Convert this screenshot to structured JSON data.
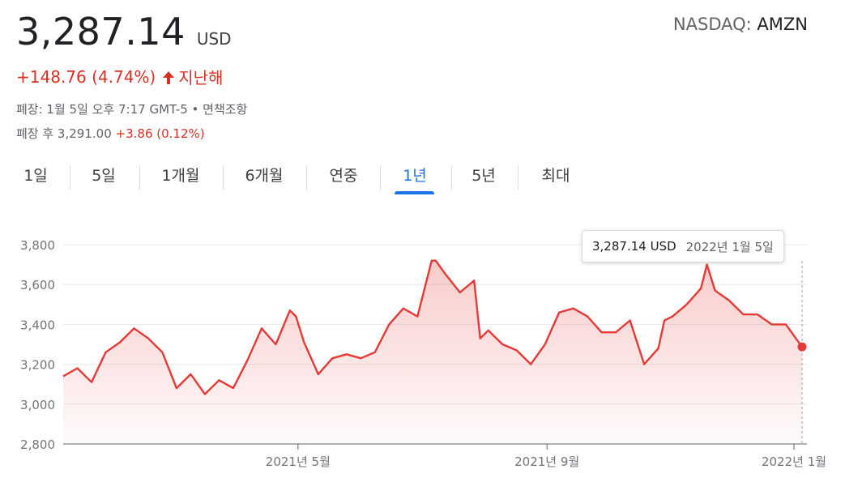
{
  "quote": {
    "price": "3,287.14",
    "currency": "USD",
    "exchange_prefix": "NASDAQ: ",
    "ticker": "AMZN",
    "change": "+148.76 (4.74%)",
    "change_period": "지난해",
    "close_label": "폐장: 1월 5일 오후 7:17 GMT-5 • 면책조항",
    "after_hours_label": "폐장 후 3,291.00",
    "after_hours_change": "+3.86 (0.12%)",
    "accent_color": "#d93025"
  },
  "tabs": [
    {
      "label": "1일"
    },
    {
      "label": "5일"
    },
    {
      "label": "1개월"
    },
    {
      "label": "6개월"
    },
    {
      "label": "연중"
    },
    {
      "label": "1년",
      "active": true
    },
    {
      "label": "5년"
    },
    {
      "label": "최대"
    }
  ],
  "tooltip": {
    "price": "3,287.14 USD",
    "date": "2022년 1월 5일"
  },
  "chart_data": {
    "type": "area",
    "title": "",
    "xlabel": "",
    "ylabel": "",
    "x_range": [
      "2021-01-05",
      "2022-01-05"
    ],
    "ylim": [
      2800,
      3800
    ],
    "yticks": [
      2800,
      3000,
      3200,
      3400,
      3600,
      3800
    ],
    "ytick_labels": [
      "2,800",
      "3,000",
      "3,200",
      "3,400",
      "3,600",
      "3,800"
    ],
    "xticks": [
      "2021-05-01",
      "2021-09-01",
      "2022-01-01"
    ],
    "xtick_labels": [
      "2021년 5월",
      "2021년 9월",
      "2022년 1월"
    ],
    "line_color": "#e53935",
    "grid": true,
    "series": [
      {
        "x": [
          "2021-01-05",
          "2021-01-12",
          "2021-01-19",
          "2021-01-26",
          "2021-02-02",
          "2021-02-09",
          "2021-02-16",
          "2021-02-23",
          "2021-03-02",
          "2021-03-09",
          "2021-03-16",
          "2021-03-23",
          "2021-03-30",
          "2021-04-06",
          "2021-04-13",
          "2021-04-20",
          "2021-04-27",
          "2021-04-30",
          "2021-05-04",
          "2021-05-11",
          "2021-05-18",
          "2021-05-25",
          "2021-06-01",
          "2021-06-08",
          "2021-06-15",
          "2021-06-22",
          "2021-06-29",
          "2021-07-06",
          "2021-07-08",
          "2021-07-13",
          "2021-07-20",
          "2021-07-27",
          "2021-07-30",
          "2021-08-03",
          "2021-08-10",
          "2021-08-17",
          "2021-08-24",
          "2021-08-31",
          "2021-09-07",
          "2021-09-14",
          "2021-09-21",
          "2021-09-28",
          "2021-10-05",
          "2021-10-12",
          "2021-10-19",
          "2021-10-26",
          "2021-10-29",
          "2021-11-02",
          "2021-11-09",
          "2021-11-16",
          "2021-11-19",
          "2021-11-23",
          "2021-11-30",
          "2021-12-07",
          "2021-12-14",
          "2021-12-21",
          "2021-12-28",
          "2022-01-05"
        ],
        "values": [
          3140,
          3180,
          3110,
          3260,
          3310,
          3380,
          3330,
          3260,
          3080,
          3150,
          3050,
          3120,
          3080,
          3220,
          3380,
          3300,
          3470,
          3440,
          3310,
          3150,
          3230,
          3250,
          3230,
          3260,
          3400,
          3480,
          3440,
          3720,
          3720,
          3650,
          3560,
          3620,
          3330,
          3370,
          3300,
          3270,
          3200,
          3300,
          3460,
          3480,
          3440,
          3360,
          3360,
          3420,
          3200,
          3280,
          3420,
          3440,
          3500,
          3580,
          3700,
          3570,
          3520,
          3450,
          3450,
          3400,
          3400,
          3287.14
        ]
      }
    ]
  }
}
